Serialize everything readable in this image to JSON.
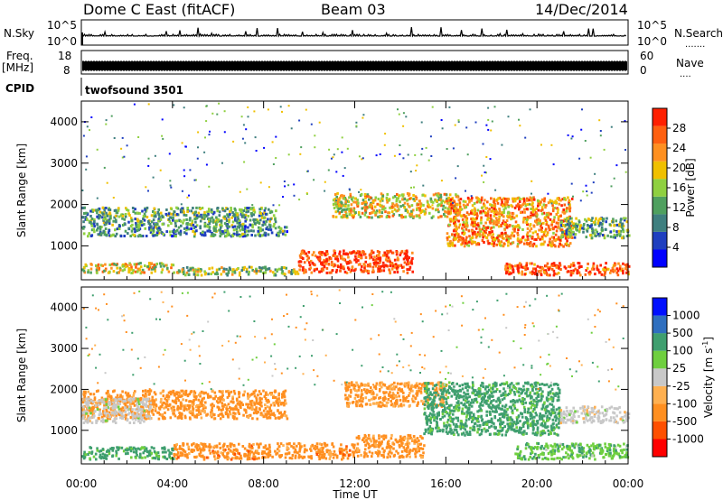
{
  "header": {
    "station": "Dome C East (fitACF)",
    "beam": "Beam 03",
    "date": "14/Dec/2014"
  },
  "strip": {
    "nsky_label": "N.Sky",
    "nsky_ticks": [
      "10^5",
      "10^0"
    ],
    "nsearch_label": "N.Search",
    "freq_label": "Freq.",
    "freq_unit": "[MHz]",
    "freq_ticks": [
      "18",
      "8"
    ],
    "nave_label": "Nave",
    "nave_ticks": [
      "60",
      "0"
    ],
    "cpid_label": "CPID",
    "cpid_value": "twofsound 3501"
  },
  "colors": {
    "power": [
      "#0000ff",
      "#1f3fbf",
      "#3f7f7f",
      "#4fa05f",
      "#8fd040",
      "#f0c000",
      "#ff9020",
      "#ff6010",
      "#ff2000"
    ],
    "velocity": [
      "#ff0000",
      "#ff5000",
      "#ff8f20",
      "#ffb050",
      "#c8c8c8",
      "#6fcf3f",
      "#3f9f6f",
      "#2f6fbf",
      "#0010ff"
    ]
  },
  "chart_data": [
    {
      "type": "heatmap",
      "name": "Power",
      "ylabel": "Slant Range [km]",
      "yticks": [
        1000,
        2000,
        3000,
        4000
      ],
      "ylim": [
        180,
        4500
      ],
      "xticks": [
        "00:00",
        "04:00",
        "08:00",
        "12:00",
        "16:00",
        "20:00",
        "00:00"
      ],
      "xlim_hours": [
        0,
        24
      ],
      "colorbar": {
        "label": "Power [dB]",
        "ticks": [
          "4",
          "8",
          "12",
          "16",
          "20",
          "24",
          "28"
        ],
        "range": [
          0,
          30
        ]
      },
      "bands": [
        {
          "t0": 0.0,
          "t1": 8.5,
          "r0": 1500,
          "r1": 1950,
          "v": 12
        },
        {
          "t0": 0.0,
          "t1": 9.0,
          "r0": 1250,
          "r1": 1500,
          "v": 10
        },
        {
          "t0": 0.0,
          "t1": 4.0,
          "r0": 350,
          "r1": 600,
          "v": 18
        },
        {
          "t0": 4.0,
          "t1": 9.5,
          "r0": 300,
          "r1": 500,
          "v": 14
        },
        {
          "t0": 9.5,
          "t1": 14.5,
          "r0": 350,
          "r1": 900,
          "v": 27
        },
        {
          "t0": 11.0,
          "t1": 16.5,
          "r0": 1700,
          "r1": 2300,
          "v": 18
        },
        {
          "t0": 16.0,
          "t1": 21.5,
          "r0": 1000,
          "r1": 2200,
          "v": 22
        },
        {
          "t0": 18.5,
          "t1": 24.0,
          "r0": 300,
          "r1": 600,
          "v": 26
        },
        {
          "t0": 21.0,
          "t1": 24.0,
          "r0": 1200,
          "r1": 1700,
          "v": 12
        }
      ]
    },
    {
      "type": "heatmap",
      "name": "Velocity",
      "ylabel": "Slant Range [km]",
      "yticks": [
        1000,
        2000,
        3000,
        4000
      ],
      "ylim": [
        180,
        4500
      ],
      "xticks": [
        "00:00",
        "04:00",
        "08:00",
        "12:00",
        "16:00",
        "20:00",
        "00:00"
      ],
      "xlabel": "Time UT",
      "xlim_hours": [
        0,
        24
      ],
      "colorbar": {
        "label": "Velocity [m s^-1]",
        "ticks": [
          "-1000",
          "-500",
          "-100",
          "-25",
          "25",
          "100",
          "500",
          "1000"
        ]
      },
      "bands": [
        {
          "t0": 0.0,
          "t1": 9.0,
          "r0": 1300,
          "r1": 2000,
          "v": -200
        },
        {
          "t0": 0.0,
          "t1": 3.0,
          "r0": 1200,
          "r1": 1800,
          "v": 0
        },
        {
          "t0": 0.0,
          "t1": 4.0,
          "r0": 300,
          "r1": 600,
          "v": 200
        },
        {
          "t0": 4.0,
          "t1": 12.0,
          "r0": 300,
          "r1": 700,
          "v": -300
        },
        {
          "t0": 12.0,
          "t1": 15.0,
          "r0": 350,
          "r1": 900,
          "v": -200
        },
        {
          "t0": 11.5,
          "t1": 16.0,
          "r0": 1600,
          "r1": 2200,
          "v": -150
        },
        {
          "t0": 15.0,
          "t1": 21.0,
          "r0": 900,
          "r1": 2200,
          "v": 200
        },
        {
          "t0": 19.0,
          "t1": 24.0,
          "r0": 300,
          "r1": 700,
          "v": 80
        },
        {
          "t0": 21.0,
          "t1": 24.0,
          "r0": 1200,
          "r1": 1600,
          "v": 0
        }
      ]
    }
  ]
}
